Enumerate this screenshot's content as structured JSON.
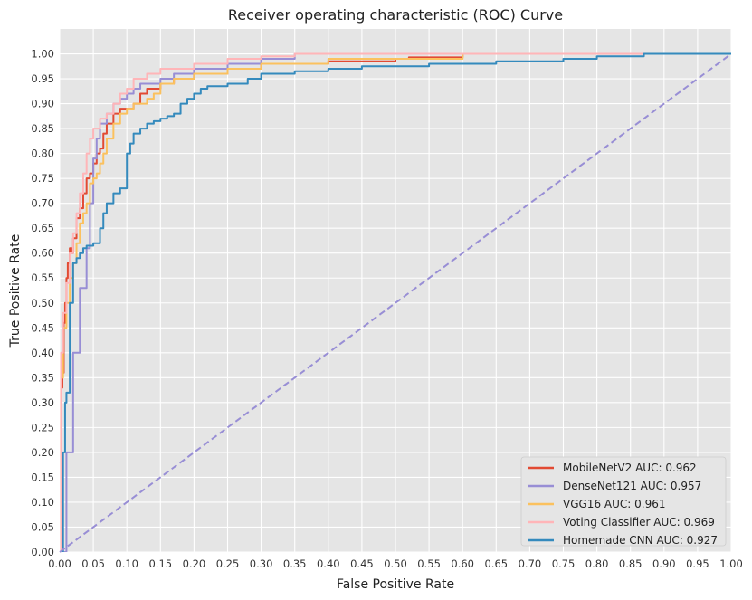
{
  "chart_data": {
    "type": "line",
    "title": "Receiver operating characteristic (ROC) Curve",
    "xlabel": "False Positive Rate",
    "ylabel": "True Positive Rate",
    "xlim": [
      0,
      1
    ],
    "ylim": [
      0,
      1.05
    ],
    "grid": true,
    "legend_position": "bottom-right",
    "xticks": [
      "0.00",
      "0.05",
      "0.10",
      "0.15",
      "0.20",
      "0.25",
      "0.30",
      "0.35",
      "0.40",
      "0.45",
      "0.50",
      "0.55",
      "0.60",
      "0.65",
      "0.70",
      "0.75",
      "0.80",
      "0.85",
      "0.90",
      "0.95",
      "1.00"
    ],
    "yticks": [
      "0.00",
      "0.05",
      "0.10",
      "0.15",
      "0.20",
      "0.25",
      "0.30",
      "0.35",
      "0.40",
      "0.45",
      "0.50",
      "0.55",
      "0.60",
      "0.65",
      "0.70",
      "0.75",
      "0.80",
      "0.85",
      "0.90",
      "0.95",
      "1.00"
    ],
    "colors": {
      "background": "#e5e5e5",
      "grid": "#ffffff",
      "diagonal": "#988ed5"
    },
    "series": [
      {
        "name": "MobileNetV2",
        "legend": "MobileNetV2 AUC: 0.962",
        "color": "#e24a33",
        "x": [
          0,
          0.002,
          0.004,
          0.006,
          0.008,
          0.01,
          0.012,
          0.015,
          0.018,
          0.02,
          0.025,
          0.03,
          0.035,
          0.04,
          0.045,
          0.05,
          0.055,
          0.06,
          0.065,
          0.07,
          0.08,
          0.09,
          0.1,
          0.11,
          0.12,
          0.13,
          0.15,
          0.17,
          0.2,
          0.25,
          0.3,
          0.4,
          0.5,
          0.52,
          0.6,
          0.7,
          0.8,
          1.0
        ],
        "y": [
          0,
          0.33,
          0.36,
          0.46,
          0.5,
          0.55,
          0.58,
          0.61,
          0.6,
          0.63,
          0.67,
          0.69,
          0.72,
          0.75,
          0.76,
          0.78,
          0.8,
          0.81,
          0.84,
          0.86,
          0.88,
          0.89,
          0.89,
          0.9,
          0.92,
          0.93,
          0.94,
          0.95,
          0.96,
          0.97,
          0.98,
          0.985,
          0.99,
          0.993,
          1.0,
          1.0,
          1.0,
          1.0
        ]
      },
      {
        "name": "DenseNet121",
        "legend": "DenseNet121 AUC: 0.957",
        "color": "#988ed5",
        "x": [
          0,
          0.01,
          0.02,
          0.03,
          0.04,
          0.045,
          0.05,
          0.055,
          0.06,
          0.07,
          0.08,
          0.09,
          0.1,
          0.11,
          0.12,
          0.13,
          0.15,
          0.17,
          0.2,
          0.25,
          0.3,
          0.35,
          0.4,
          0.5,
          0.6,
          0.8,
          1.0
        ],
        "y": [
          0,
          0.2,
          0.4,
          0.53,
          0.61,
          0.7,
          0.79,
          0.83,
          0.86,
          0.88,
          0.9,
          0.91,
          0.92,
          0.93,
          0.94,
          0.94,
          0.95,
          0.96,
          0.97,
          0.98,
          0.99,
          1.0,
          1.0,
          1.0,
          1.0,
          1.0,
          1.0
        ]
      },
      {
        "name": "VGG16",
        "legend": "VGG16 AUC: 0.961",
        "color": "#fbc15e",
        "x": [
          0,
          0.002,
          0.005,
          0.01,
          0.015,
          0.02,
          0.025,
          0.03,
          0.035,
          0.04,
          0.045,
          0.05,
          0.055,
          0.06,
          0.065,
          0.07,
          0.08,
          0.09,
          0.1,
          0.11,
          0.12,
          0.13,
          0.14,
          0.15,
          0.17,
          0.2,
          0.25,
          0.3,
          0.4,
          0.5,
          0.6,
          0.7,
          0.8,
          1.0
        ],
        "y": [
          0,
          0.35,
          0.45,
          0.5,
          0.55,
          0.58,
          0.62,
          0.66,
          0.68,
          0.7,
          0.74,
          0.75,
          0.76,
          0.78,
          0.8,
          0.83,
          0.86,
          0.88,
          0.89,
          0.9,
          0.9,
          0.91,
          0.92,
          0.94,
          0.95,
          0.96,
          0.97,
          0.98,
          0.99,
          0.99,
          1.0,
          1.0,
          1.0,
          1.0
        ]
      },
      {
        "name": "Voting Classifier",
        "legend": "Voting Classifier AUC: 0.969",
        "color": "#ffb5b8",
        "x": [
          0,
          0.002,
          0.005,
          0.01,
          0.015,
          0.02,
          0.025,
          0.03,
          0.035,
          0.04,
          0.045,
          0.05,
          0.06,
          0.07,
          0.08,
          0.09,
          0.1,
          0.11,
          0.12,
          0.13,
          0.15,
          0.18,
          0.2,
          0.25,
          0.3,
          0.35,
          0.5,
          0.6,
          0.8,
          1.0
        ],
        "y": [
          0,
          0.4,
          0.48,
          0.54,
          0.6,
          0.64,
          0.68,
          0.72,
          0.76,
          0.8,
          0.83,
          0.85,
          0.87,
          0.88,
          0.9,
          0.92,
          0.93,
          0.95,
          0.95,
          0.96,
          0.97,
          0.97,
          0.98,
          0.99,
          0.995,
          1.0,
          1.0,
          1.0,
          1.0,
          1.0
        ]
      },
      {
        "name": "Homemade CNN",
        "legend": "Homemade CNN AUC: 0.927",
        "color": "#348abd",
        "x": [
          0,
          0.005,
          0.008,
          0.01,
          0.015,
          0.02,
          0.025,
          0.03,
          0.035,
          0.04,
          0.05,
          0.06,
          0.065,
          0.07,
          0.08,
          0.09,
          0.1,
          0.105,
          0.11,
          0.12,
          0.13,
          0.14,
          0.15,
          0.16,
          0.17,
          0.18,
          0.19,
          0.2,
          0.21,
          0.22,
          0.23,
          0.25,
          0.28,
          0.3,
          0.35,
          0.4,
          0.45,
          0.5,
          0.55,
          0.65,
          0.75,
          0.8,
          0.87,
          0.95,
          1.0
        ],
        "y": [
          0,
          0.2,
          0.3,
          0.32,
          0.5,
          0.58,
          0.59,
          0.6,
          0.61,
          0.615,
          0.62,
          0.65,
          0.68,
          0.7,
          0.72,
          0.73,
          0.8,
          0.82,
          0.84,
          0.85,
          0.86,
          0.865,
          0.87,
          0.875,
          0.88,
          0.9,
          0.91,
          0.92,
          0.93,
          0.935,
          0.935,
          0.94,
          0.95,
          0.96,
          0.965,
          0.97,
          0.975,
          0.975,
          0.98,
          0.985,
          0.99,
          0.995,
          1.0,
          1.0,
          1.0
        ]
      }
    ]
  }
}
